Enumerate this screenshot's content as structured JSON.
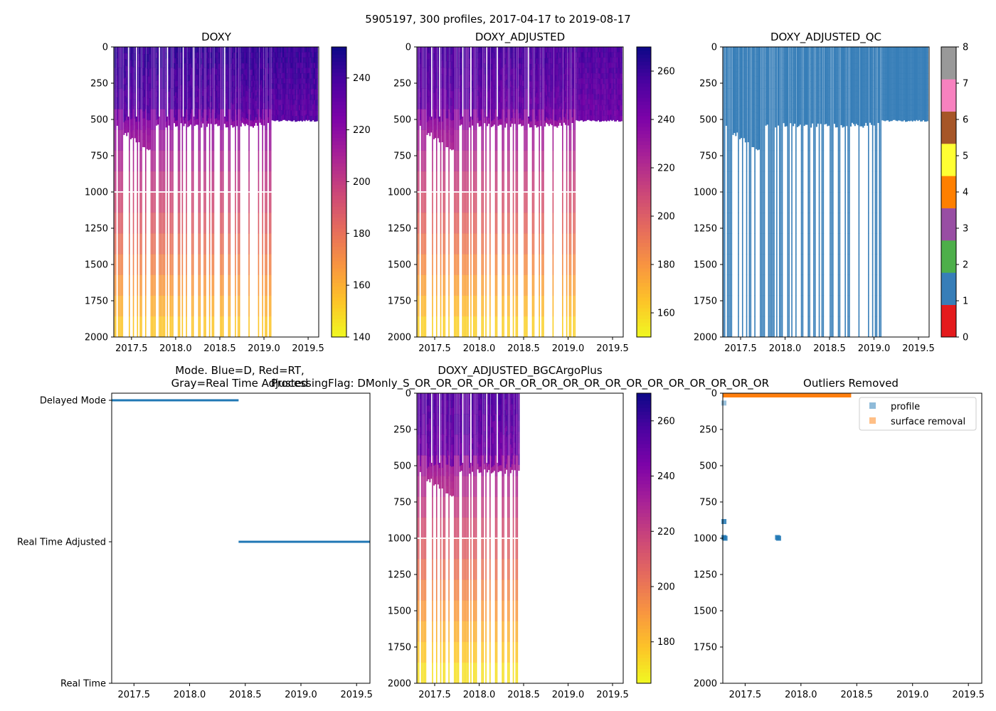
{
  "figure": {
    "suptitle": "5905197, 300 profiles, 2017-04-17 to 2019-08-17"
  },
  "colormaps": {
    "plasma_r": [
      "#f0f921",
      "#fdc328",
      "#f89441",
      "#e56b5d",
      "#cb4679",
      "#a82296",
      "#7e03a8",
      "#4c02a1",
      "#0d0887"
    ],
    "qc": [
      "#e41a1c",
      "#377eb8",
      "#4daf4a",
      "#984ea3",
      "#ff7f00",
      "#ffff33",
      "#a65628",
      "#f781bf",
      "#999999"
    ],
    "line_blue": "#1f77b4",
    "line_orange": "#ff7f0e"
  },
  "chart_data": [
    {
      "id": "doxy",
      "type": "heatmap",
      "title": "DOXY",
      "xlim": [
        2017.3,
        2019.62
      ],
      "xticks": [
        "2017.5",
        "2018.0",
        "2018.5",
        "2019.0",
        "2019.5"
      ],
      "ylim": [
        2000,
        0
      ],
      "yticks": [
        "0",
        "250",
        "500",
        "750",
        "1000",
        "1250",
        "1500",
        "1750",
        "2000"
      ],
      "colorbar": {
        "range": [
          140,
          252
        ],
        "ticks": [
          "140",
          "160",
          "180",
          "200",
          "220",
          "240"
        ]
      },
      "data_end": 2019.6,
      "deep_profile_end": 2019.08,
      "surface_oxygen": 243,
      "deep_oxygen": 150
    },
    {
      "id": "doxy_adjusted",
      "type": "heatmap",
      "title": "DOXY_ADJUSTED",
      "xlim": [
        2017.3,
        2019.62
      ],
      "xticks": [
        "2017.5",
        "2018.0",
        "2018.5",
        "2019.0",
        "2019.5"
      ],
      "ylim": [
        2000,
        0
      ],
      "yticks": [
        "0",
        "250",
        "500",
        "750",
        "1000",
        "1250",
        "1500",
        "1750",
        "2000"
      ],
      "colorbar": {
        "range": [
          150,
          270
        ],
        "ticks": [
          "160",
          "180",
          "200",
          "220",
          "240",
          "260"
        ]
      },
      "data_end": 2019.6,
      "deep_profile_end": 2019.08,
      "surface_oxygen": 255,
      "deep_oxygen": 158
    },
    {
      "id": "doxy_adjusted_qc",
      "type": "heatmap",
      "title": "DOXY_ADJUSTED_QC",
      "xlim": [
        2017.3,
        2019.62
      ],
      "xticks": [
        "2017.5",
        "2018.0",
        "2018.5",
        "2019.0",
        "2019.5"
      ],
      "ylim": [
        2000,
        0
      ],
      "yticks": [
        "0",
        "250",
        "500",
        "750",
        "1000",
        "1250",
        "1500",
        "1750",
        "2000"
      ],
      "colorbar": {
        "range": [
          0,
          8
        ],
        "ticks": [
          "0",
          "1",
          "2",
          "3",
          "4",
          "5",
          "6",
          "7",
          "8"
        ]
      },
      "qc_value": 1,
      "data_end": 2019.6,
      "deep_profile_end": 2019.08
    },
    {
      "id": "mode",
      "type": "scatter",
      "title_line1": "Mode. Blue=D, Red=RT,",
      "title_line2": "Gray=Real Time Adjusted",
      "xlim": [
        2017.3,
        2019.62
      ],
      "xticks": [
        "2017.5",
        "2018.0",
        "2018.5",
        "2019.0",
        "2019.5"
      ],
      "ylevels": [
        "Delayed Mode",
        "Real Time Adjusted",
        "Real Time"
      ],
      "segments": [
        {
          "level": "Delayed Mode",
          "start": 2017.3,
          "end": 2018.44
        },
        {
          "level": "Real Time Adjusted",
          "start": 2018.44,
          "end": 2019.62
        }
      ]
    },
    {
      "id": "bgcargoplus",
      "type": "heatmap",
      "title_line1": "DOXY_ADJUSTED_BGCArgoPlus",
      "title_line2": "ProcessingFlag: DMonly_S_OR_OR_OR_OR_OR_OR_OR_OR_OR_OR_OR_OR_OR_OR_OR_OR_OR",
      "xlim": [
        2017.3,
        2019.62
      ],
      "xticks": [
        "2017.5",
        "2018.0",
        "2018.5",
        "2019.0",
        "2019.5"
      ],
      "ylim": [
        2000,
        0
      ],
      "yticks": [
        "0",
        "250",
        "500",
        "750",
        "1000",
        "1250",
        "1500",
        "1750",
        "2000"
      ],
      "colorbar": {
        "range": [
          165,
          270
        ],
        "ticks": [
          "180",
          "200",
          "220",
          "240",
          "260"
        ]
      },
      "data_end": 2018.44,
      "deep_profile_end": 2018.44,
      "surface_oxygen": 255,
      "deep_oxygen": 168
    },
    {
      "id": "outliers",
      "type": "scatter",
      "title": "Outliers Removed",
      "xlim": [
        2017.3,
        2019.62
      ],
      "xticks": [
        "2017.5",
        "2018.0",
        "2018.5",
        "2019.0",
        "2019.5"
      ],
      "ylim": [
        2000,
        0
      ],
      "yticks": [
        "0",
        "250",
        "500",
        "750",
        "1000",
        "1250",
        "1500",
        "1750",
        "2000"
      ],
      "legend": {
        "position": "upper right",
        "entries": [
          "profile",
          "surface removal"
        ]
      },
      "profile_points": [
        {
          "x": 2017.31,
          "y": 68
        },
        {
          "x": 2017.31,
          "y": 885
        },
        {
          "x": 2017.31,
          "y": 995
        },
        {
          "x": 2017.32,
          "y": 1000
        },
        {
          "x": 2017.79,
          "y": 995
        },
        {
          "x": 2017.8,
          "y": 1000
        }
      ],
      "surface_removal": {
        "start": 2017.3,
        "end": 2018.45,
        "depth": 6
      }
    }
  ]
}
